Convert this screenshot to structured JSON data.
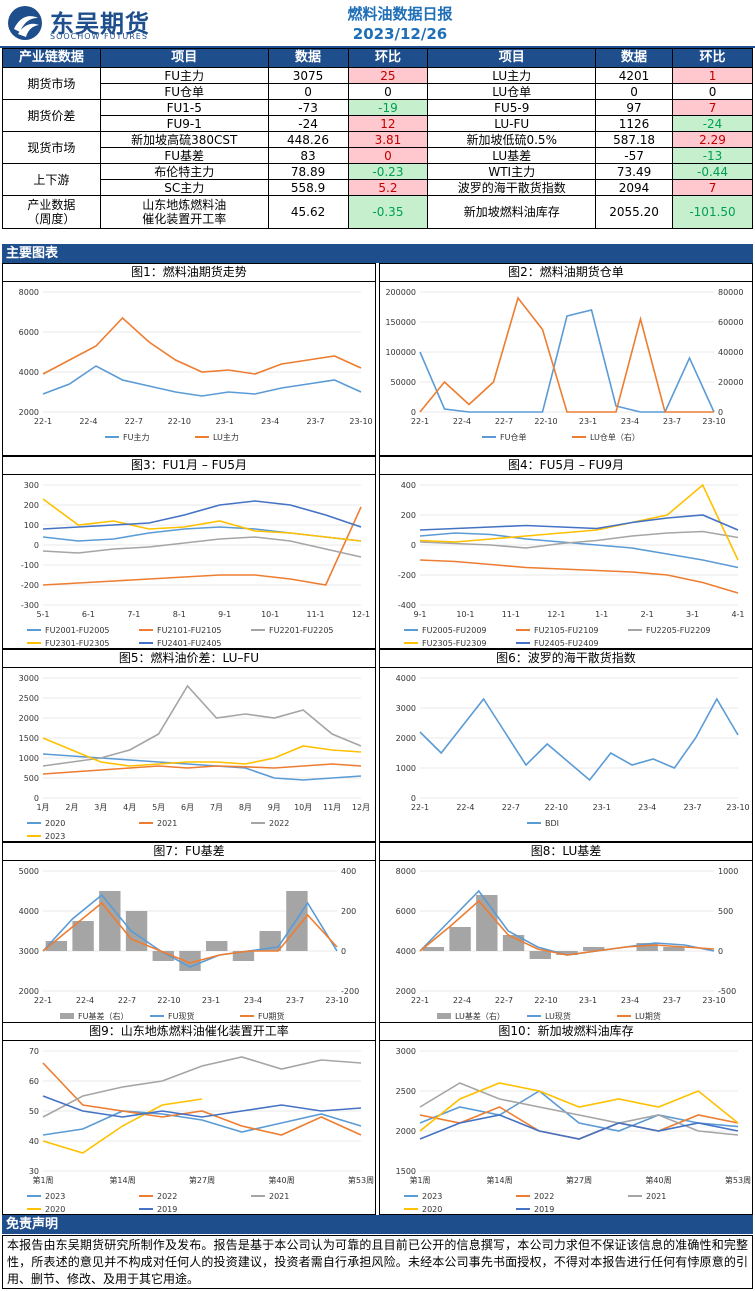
{
  "header": {
    "logo_cn": "东吴期货",
    "logo_en": "SOOCHOW FUTURES",
    "title": "燃料油数据日报",
    "date": "2023/12/26"
  },
  "table": {
    "headers": [
      "产业链数据",
      "项目",
      "数据",
      "环比",
      "项目",
      "数据",
      "环比"
    ],
    "groups": [
      {
        "category": "期货市场",
        "rows": [
          {
            "l_item": "FU主力",
            "l_val": "3075",
            "l_chg": "25",
            "l_dir": "up",
            "r_item": "LU主力",
            "r_val": "4201",
            "r_chg": "1",
            "r_dir": "up"
          },
          {
            "l_item": "FU仓单",
            "l_val": "0",
            "l_chg": "0",
            "l_dir": "none",
            "r_item": "LU仓单",
            "r_val": "0",
            "r_chg": "0",
            "r_dir": "none"
          }
        ]
      },
      {
        "category": "期货价差",
        "rows": [
          {
            "l_item": "FU1-5",
            "l_val": "-73",
            "l_chg": "-19",
            "l_dir": "down",
            "r_item": "FU5-9",
            "r_val": "97",
            "r_chg": "7",
            "r_dir": "up"
          },
          {
            "l_item": "FU9-1",
            "l_val": "-24",
            "l_chg": "12",
            "l_dir": "up",
            "r_item": "LU-FU",
            "r_val": "1126",
            "r_chg": "-24",
            "r_dir": "down"
          }
        ]
      },
      {
        "category": "现货市场",
        "rows": [
          {
            "l_item": "新加坡高硫380CST",
            "l_val": "448.26",
            "l_chg": "3.81",
            "l_dir": "up",
            "r_item": "新加坡低硫0.5%",
            "r_val": "587.18",
            "r_chg": "2.29",
            "r_dir": "up"
          },
          {
            "l_item": "FU基差",
            "l_val": "83",
            "l_chg": "0",
            "l_dir": "up",
            "r_item": "LU基差",
            "r_val": "-57",
            "r_chg": "-13",
            "r_dir": "down"
          }
        ]
      },
      {
        "category": "上下游",
        "rows": [
          {
            "l_item": "布伦特主力",
            "l_val": "78.89",
            "l_chg": "-0.23",
            "l_dir": "down",
            "r_item": "WTI主力",
            "r_val": "73.49",
            "r_chg": "-0.44",
            "r_dir": "down"
          },
          {
            "l_item": "SC主力",
            "l_val": "558.9",
            "l_chg": "5.2",
            "l_dir": "up",
            "r_item": "波罗的海干散货指数",
            "r_val": "2094",
            "r_chg": "7",
            "r_dir": "up"
          }
        ]
      }
    ],
    "weekly": {
      "category_1": "产业数据",
      "category_2": "（周度）",
      "l_item_1": "山东地炼燃料油",
      "l_item_2": "催化装置开工率",
      "l_val": "45.62",
      "l_chg": "-0.35",
      "r_item": "新加坡燃料油库存",
      "r_val": "2055.20",
      "r_chg": "-101.50"
    }
  },
  "sections": {
    "charts": "主要图表",
    "disclaimer": "免责声明"
  },
  "disclaimer_text": "本报告由东吴期货研究所制作及发布。报告是基于本公司认为可靠的且目前已公开的信息撰写，本公司力求但不保证该信息的准确性和完整性，所表述的意见并不构成对任何人的投资建议，投资者需自行承担风险。未经本公司事先书面授权，不得对本报告进行任何有悖原意的引用、删节、修改、及用于其它用途。",
  "colors": {
    "brand": "#1f4e8c",
    "blue": "#5b9bd5",
    "orange": "#ed7d31",
    "gray": "#a5a5a5",
    "yellow": "#ffc000",
    "navy": "#4472c4",
    "up_bg": "#ffc7ce",
    "down_bg": "#c6efce"
  },
  "chart_data": [
    {
      "type": "line",
      "title": "图1：燃料油期货走势",
      "y_ticks": [
        "8000",
        "6000",
        "4000",
        "2000"
      ],
      "x_ticks": [
        "22-1",
        "22-4",
        "22-7",
        "22-10",
        "23-1",
        "23-4",
        "23-7",
        "23-10"
      ],
      "series": [
        {
          "name": "FU主力",
          "values": [
            2900,
            3400,
            4300,
            3600,
            3300,
            3000,
            2800,
            3000,
            2900,
            3200,
            3400,
            3600,
            3000
          ]
        },
        {
          "name": "LU主力",
          "values": [
            3900,
            4600,
            5300,
            6700,
            5500,
            4600,
            4000,
            4100,
            3900,
            4400,
            4600,
            4800,
            4200
          ]
        }
      ]
    },
    {
      "type": "line",
      "title": "图2：燃料油期货仓单",
      "y_ticks": [
        "200000",
        "150000",
        "100000",
        "50000",
        "0"
      ],
      "y2_ticks": [
        "80000",
        "60000",
        "40000",
        "20000",
        "0"
      ],
      "x_ticks": [
        "22-1",
        "22-4",
        "22-7",
        "22-10",
        "23-1",
        "23-4",
        "23-7",
        "23-10"
      ],
      "series": [
        {
          "name": "FU仓单",
          "values": [
            100000,
            5000,
            0,
            0,
            0,
            0,
            160000,
            170000,
            10000,
            0,
            0,
            90000,
            0
          ]
        },
        {
          "name": "LU仓单（右）",
          "values": [
            0,
            20000,
            5000,
            20000,
            76000,
            55000,
            0,
            0,
            0,
            62000,
            0,
            0,
            0
          ]
        }
      ]
    },
    {
      "type": "line",
      "title": "图3：FU1月 – FU5月",
      "y_ticks": [
        "300",
        "200",
        "100",
        "0",
        "-100",
        "-200",
        "-300"
      ],
      "x_ticks": [
        "5-1",
        "6-1",
        "7-1",
        "8-1",
        "9-1",
        "10-1",
        "11-1",
        "12-1"
      ],
      "series": [
        {
          "name": "FU2001-FU2005",
          "values": [
            40,
            20,
            30,
            60,
            80,
            90,
            80,
            60,
            40,
            20
          ]
        },
        {
          "name": "FU2101-FU2105",
          "values": [
            -200,
            -190,
            -180,
            -170,
            -160,
            -150,
            -150,
            -170,
            -200,
            190
          ]
        },
        {
          "name": "FU2201-FU2205",
          "values": [
            -30,
            -40,
            -20,
            -10,
            10,
            30,
            40,
            20,
            -20,
            -60
          ]
        },
        {
          "name": "FU2301-FU2305",
          "values": [
            230,
            100,
            120,
            80,
            90,
            120,
            70,
            60,
            40,
            20
          ]
        },
        {
          "name": "FU2401-FU2405",
          "values": [
            80,
            90,
            100,
            110,
            150,
            200,
            220,
            200,
            150,
            90
          ]
        }
      ]
    },
    {
      "type": "line",
      "title": "图4：FU5月 – FU9月",
      "y_ticks": [
        "400",
        "200",
        "0",
        "-200",
        "-400"
      ],
      "x_ticks": [
        "9-1",
        "10-1",
        "11-1",
        "12-1",
        "1-1",
        "2-1",
        "3-1",
        "4-1"
      ],
      "series": [
        {
          "name": "FU2005-FU2009",
          "values": [
            60,
            80,
            70,
            40,
            20,
            0,
            -20,
            -60,
            -100,
            -150
          ]
        },
        {
          "name": "FU2105-FU2109",
          "values": [
            -100,
            -110,
            -130,
            -150,
            -160,
            -170,
            -180,
            -200,
            -250,
            -320
          ]
        },
        {
          "name": "FU2205-FU2209",
          "values": [
            20,
            10,
            0,
            -20,
            10,
            30,
            60,
            80,
            90,
            50
          ]
        },
        {
          "name": "FU2305-FU2309",
          "values": [
            30,
            20,
            40,
            60,
            80,
            100,
            150,
            200,
            400,
            -100
          ]
        },
        {
          "name": "FU2405-FU2409",
          "values": [
            100,
            110,
            120,
            130,
            120,
            110,
            150,
            180,
            200,
            100
          ]
        }
      ]
    },
    {
      "type": "line",
      "title": "图5：燃料油价差：LU–FU",
      "y_ticks": [
        "3000",
        "2500",
        "2000",
        "1500",
        "1000",
        "500",
        "0"
      ],
      "x_ticks": [
        "1月",
        "2月",
        "3月",
        "4月",
        "5月",
        "6月",
        "7月",
        "8月",
        "9月",
        "10月",
        "11月",
        "12月"
      ],
      "series": [
        {
          "name": "2020",
          "values": [
            1100,
            1050,
            1000,
            950,
            900,
            850,
            800,
            750,
            500,
            450,
            500,
            550
          ]
        },
        {
          "name": "2021",
          "values": [
            600,
            650,
            700,
            750,
            800,
            750,
            800,
            780,
            750,
            800,
            850,
            800
          ]
        },
        {
          "name": "2022",
          "values": [
            800,
            900,
            1000,
            1200,
            1600,
            2800,
            2000,
            2100,
            2000,
            2200,
            1600,
            1300
          ]
        },
        {
          "name": "2023",
          "values": [
            1500,
            1200,
            900,
            800,
            850,
            900,
            900,
            850,
            1000,
            1300,
            1200,
            1150
          ]
        }
      ]
    },
    {
      "type": "line",
      "title": "图6：波罗的海干散货指数",
      "y_ticks": [
        "4000",
        "3000",
        "2000",
        "1000",
        "0"
      ],
      "x_ticks": [
        "22-1",
        "22-4",
        "22-7",
        "22-10",
        "23-1",
        "23-4",
        "23-7",
        "23-10"
      ],
      "series": [
        {
          "name": "BDI",
          "values": [
            2200,
            1500,
            2400,
            3300,
            2200,
            1100,
            1800,
            1200,
            600,
            1500,
            1100,
            1300,
            1000,
            2000,
            3300,
            2100
          ]
        }
      ]
    },
    {
      "type": "line",
      "title": "图7：FU基差",
      "y_ticks": [
        "5000",
        "4000",
        "3000",
        "2000"
      ],
      "y2_ticks": [
        "400",
        "200",
        "0",
        "-200"
      ],
      "x_ticks": [
        "22-1",
        "22-4",
        "22-7",
        "22-10",
        "23-1",
        "23-4",
        "23-7",
        "23-10"
      ],
      "series": [
        {
          "name": "FU基差（右）",
          "values": [
            50,
            150,
            300,
            200,
            -50,
            -100,
            50,
            -50,
            100,
            300,
            0
          ]
        },
        {
          "name": "FU现货",
          "values": [
            3000,
            3800,
            4400,
            3500,
            3000,
            2600,
            2900,
            3000,
            3100,
            4200,
            3000
          ]
        },
        {
          "name": "FU期货",
          "values": [
            3000,
            3600,
            4200,
            3300,
            3000,
            2700,
            2900,
            3000,
            3000,
            3900,
            3100
          ]
        }
      ]
    },
    {
      "type": "line",
      "title": "图8：LU基差",
      "y_ticks": [
        "8000",
        "6000",
        "4000",
        "2000"
      ],
      "y2_ticks": [
        "1000",
        "500",
        "0",
        "-500"
      ],
      "x_ticks": [
        "22-1",
        "22-4",
        "22-7",
        "22-10",
        "23-1",
        "23-4",
        "23-7",
        "23-10"
      ],
      "series": [
        {
          "name": "LU基差（右）",
          "values": [
            50,
            300,
            700,
            200,
            -100,
            -50,
            50,
            0,
            100,
            50,
            0
          ]
        },
        {
          "name": "LU现货",
          "values": [
            4000,
            5500,
            7000,
            5000,
            4200,
            3800,
            4000,
            4200,
            4400,
            4300,
            4000
          ]
        },
        {
          "name": "LU期货",
          "values": [
            4000,
            5200,
            6500,
            4800,
            4100,
            3800,
            4000,
            4200,
            4300,
            4200,
            4100
          ]
        }
      ]
    },
    {
      "type": "line",
      "title": "图9：山东地炼燃料油催化装置开工率",
      "y_ticks": [
        "70",
        "60",
        "50",
        "40",
        "30"
      ],
      "x_ticks": [
        "第1周",
        "第14周",
        "第27周",
        "第40周",
        "第53周"
      ],
      "series": [
        {
          "name": "2023",
          "values": [
            42,
            44,
            50,
            49,
            47,
            43,
            46,
            49,
            45
          ]
        },
        {
          "name": "2022",
          "values": [
            66,
            52,
            50,
            48,
            50,
            45,
            42,
            48,
            42
          ]
        },
        {
          "name": "2021",
          "values": [
            48,
            55,
            58,
            60,
            65,
            68,
            64,
            67,
            66
          ]
        },
        {
          "name": "2020",
          "values": [
            40,
            36,
            45,
            52,
            54,
            null,
            null,
            null,
            null
          ]
        },
        {
          "name": "2019",
          "values": [
            55,
            50,
            48,
            50,
            48,
            50,
            52,
            50,
            51
          ]
        }
      ]
    },
    {
      "type": "line",
      "title": "图10：新加坡燃料油库存",
      "y_ticks": [
        "3000",
        "2500",
        "2000",
        "1500"
      ],
      "x_ticks": [
        "第1周",
        "第14周",
        "第27周",
        "第40周",
        "第53周"
      ],
      "series": [
        {
          "name": "2023",
          "values": [
            2100,
            2300,
            2200,
            2500,
            2100,
            2000,
            2200,
            2100,
            2055
          ]
        },
        {
          "name": "2022",
          "values": [
            2200,
            2100,
            2300,
            2000,
            1900,
            2100,
            2000,
            2200,
            2100
          ]
        },
        {
          "name": "2021",
          "values": [
            2300,
            2600,
            2400,
            2300,
            2200,
            2100,
            2200,
            2000,
            1950
          ]
        },
        {
          "name": "2020",
          "values": [
            2000,
            2400,
            2600,
            2500,
            2300,
            2400,
            2300,
            2500,
            2100
          ]
        },
        {
          "name": "2019",
          "values": [
            1900,
            2100,
            2200,
            2000,
            1900,
            2100,
            2000,
            2100,
            2000
          ]
        }
      ]
    }
  ]
}
